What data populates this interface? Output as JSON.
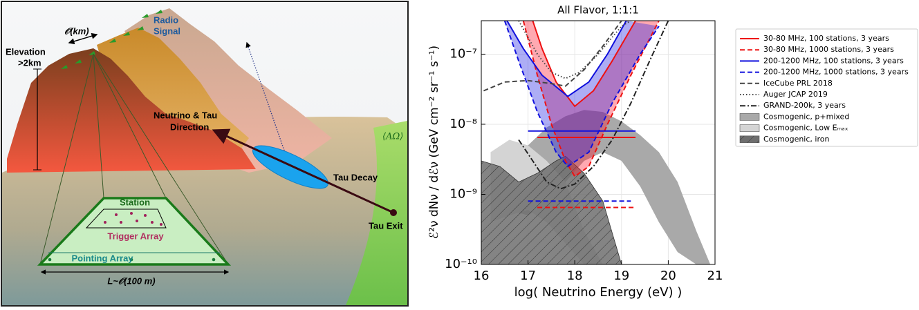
{
  "diagram": {
    "scale_km": "𝒪(km)",
    "radio": [
      "Radio",
      "Signal"
    ],
    "elevation": [
      "Elevation",
      ">2km"
    ],
    "direction": [
      "Neutrino & Tau",
      "Direction"
    ],
    "tau_decay": "Tau Decay",
    "tau_exit": "Tau Exit",
    "acceptance": "⟨AΩ⟩",
    "station": "Station",
    "trigger": "Trigger Array",
    "pointing": "Pointing Array",
    "length": "L~𝒪(100 m)"
  },
  "chart_data": {
    "type": "line",
    "title": "All Flavor, 1:1:1",
    "x_label": "log( Neutrino Energy (eV) )",
    "y_label": "ℰ²ν dNν / dℰν (GeV cm⁻² sr⁻¹ s⁻¹)",
    "xlim": [
      16,
      21
    ],
    "ylim": [
      1e-10,
      3e-07
    ],
    "log_y": true,
    "grid": true,
    "legend": "outside right",
    "xticks": [
      16,
      17,
      18,
      19,
      20,
      21
    ],
    "yticks": [
      {
        "value": 1e-10,
        "label": "10⁻¹⁰"
      },
      {
        "value": 1e-09,
        "label": "10⁻⁹"
      },
      {
        "value": 1e-08,
        "label": "10⁻⁸"
      },
      {
        "value": 1e-07,
        "label": "10⁻⁷"
      }
    ],
    "series": [
      {
        "name": "30-80 MHz, 100 stations, 3 years",
        "color": "#ee1111",
        "style": "solid",
        "band_color": "rgba(255,30,50,0.38)",
        "x": [
          17.1,
          17.3,
          17.6,
          18,
          18.4,
          18.8,
          19.3
        ],
        "values": [
          3e-07,
          1.2e-07,
          4e-08,
          1.8e-08,
          3e-08,
          8e-08,
          3e-07
        ],
        "integral_x": [
          17.2,
          19.3
        ],
        "integral_values": [
          6.5e-09,
          6.5e-09
        ]
      },
      {
        "name": "30-80 MHz, 1000 stations, 3 years",
        "color": "#ee1111",
        "style": "dashed",
        "x": [
          16.9,
          17.2,
          17.5,
          17.8,
          18,
          18.3,
          18.7,
          19.2,
          19.8
        ],
        "values": [
          3e-07,
          5e-08,
          1e-08,
          3e-09,
          1.8e-09,
          2.5e-09,
          1e-08,
          5e-08,
          3e-07
        ],
        "integral_x": [
          17.2,
          19.3
        ],
        "integral_values": [
          6.5e-10,
          6.5e-10
        ]
      },
      {
        "name": "200-1200 MHz, 100 stations, 3 years",
        "color": "#1010dd",
        "style": "solid",
        "band_color": "rgba(40,40,230,0.38)",
        "x": [
          16.55,
          16.9,
          17.3,
          17.85,
          18.3,
          18.7,
          19.1
        ],
        "values": [
          3e-07,
          1.2e-07,
          5e-08,
          2.5e-08,
          4e-08,
          1e-07,
          3e-07
        ],
        "integral_x": [
          17,
          19.3
        ],
        "integral_values": [
          8e-09,
          8e-09
        ]
      },
      {
        "name": "200-1200 MHz, 1000 stations, 3 years",
        "color": "#1010dd",
        "style": "dashed",
        "x": [
          16.5,
          16.8,
          17.2,
          17.6,
          17.85,
          18.3,
          18.8,
          19.4,
          19.8
        ],
        "values": [
          3e-07,
          8e-08,
          1.5e-08,
          4e-09,
          2.5e-09,
          4e-09,
          2e-08,
          1e-07,
          2.5e-07
        ],
        "integral_x": [
          17,
          19.2
        ],
        "integral_values": [
          8e-10,
          8e-10
        ]
      },
      {
        "name": "IceCube PRL 2018",
        "color": "#444444",
        "style": "dashed",
        "x": [
          16.05,
          16.5,
          17,
          17.5,
          17.8,
          18.2,
          18.6,
          19
        ],
        "values": [
          3e-08,
          4e-08,
          4.2e-08,
          3.8e-08,
          3.5e-08,
          6e-08,
          1.3e-07,
          3e-07
        ]
      },
      {
        "name": "Auger JCAP 2019",
        "color": "#444444",
        "style": "dotted",
        "x": [
          16.8,
          17.2,
          17.5,
          17.8,
          18.1,
          18.5,
          19,
          19.2
        ],
        "values": [
          3e-07,
          1e-07,
          5.5e-08,
          4.5e-08,
          5.5e-08,
          1e-07,
          2.5e-07,
          3e-07
        ]
      },
      {
        "name": "GRAND-200k, 3 years",
        "color": "#222222",
        "style": "dashdot",
        "x": [
          16.8,
          17.1,
          17.4,
          17.7,
          18,
          18.4,
          18.8,
          19.2,
          19.6,
          20
        ],
        "values": [
          6e-09,
          3e-09,
          1.5e-09,
          1.2e-09,
          1.4e-09,
          2.5e-09,
          6e-09,
          2e-08,
          8e-08,
          3e-07
        ]
      },
      {
        "name": "Cosmogenic, p+mixed",
        "color": "#a9a9a9",
        "style": "fill",
        "x": [
          16.2,
          16.6,
          17,
          17.4,
          17.8,
          18.2,
          18.6,
          19,
          19.4,
          19.8,
          20.2,
          20.6,
          20.9
        ],
        "upper": [
          1.5e-09,
          3e-09,
          5e-09,
          9e-09,
          1.3e-08,
          1.6e-08,
          1.5e-08,
          1.1e-08,
          7e-09,
          4e-09,
          1.5e-09,
          3e-10,
          1e-10
        ],
        "values": [
          1.1e-09,
          6e-10,
          5e-10,
          8e-10,
          1.5e-09,
          3e-09,
          4e-09,
          3e-09,
          1.3e-09,
          4e-10,
          1.5e-10,
          1e-10,
          1e-10
        ]
      },
      {
        "name": "Cosmogenic, Low Eₘₐₓ",
        "color": "#d4d4d4",
        "style": "fill",
        "x": [
          16.2,
          16.6,
          17,
          17.4,
          17.8,
          18.2,
          18.6
        ],
        "upper": [
          4e-09,
          6e-09,
          5e-09,
          3e-09,
          1.5e-09,
          3e-10,
          1e-10
        ],
        "values": [
          4e-10,
          5e-10,
          6e-10,
          4e-10,
          2e-10,
          1e-10,
          1e-10
        ]
      },
      {
        "name": "Cosmogenic, iron",
        "color": "#6e6e6e",
        "style": "hatch",
        "x": [
          16,
          16.4,
          16.8,
          17.2,
          17.6,
          17.8,
          18.2,
          18.6,
          19
        ],
        "upper": [
          3e-09,
          2.5e-09,
          1.5e-09,
          2e-09,
          3e-09,
          3.5e-09,
          2e-09,
          8e-10,
          1e-10
        ],
        "values": [
          1e-10,
          1e-10,
          1e-10,
          1e-10,
          1e-10,
          1e-10,
          1e-10,
          1e-10,
          1e-10
        ]
      }
    ]
  }
}
